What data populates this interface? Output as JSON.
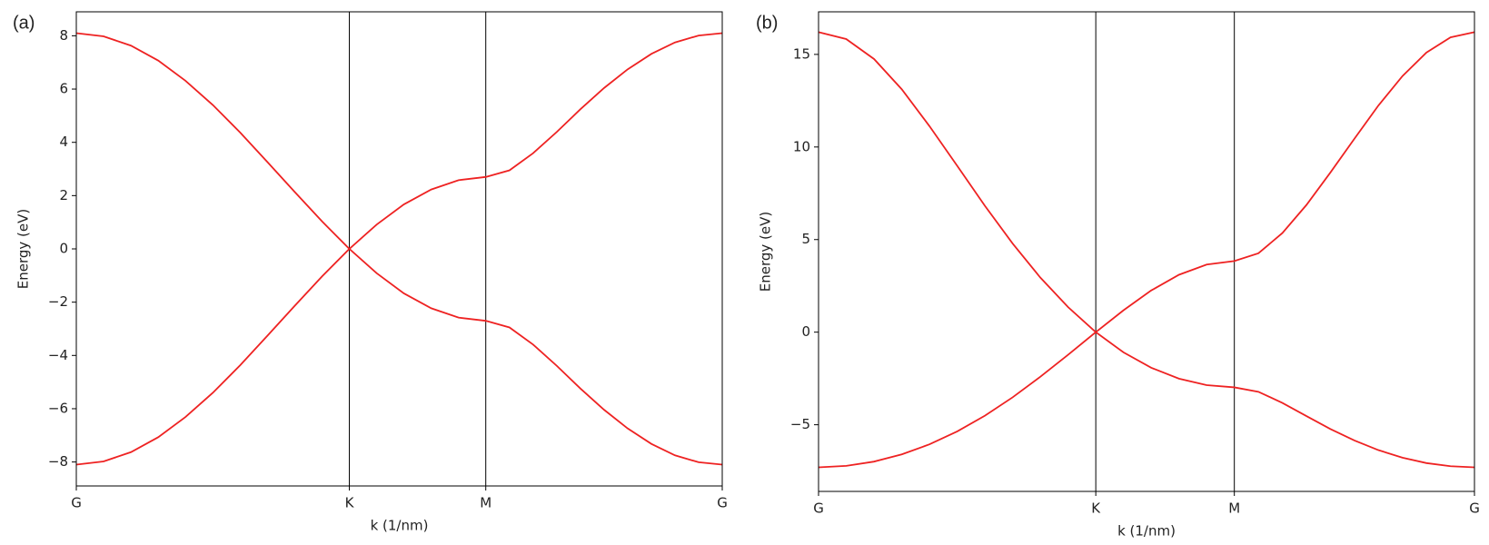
{
  "chart_data": [
    {
      "type": "line",
      "panel_label": "(a)",
      "xlabel": "k (1/nm)",
      "ylabel": "Energy (eV)",
      "grid": "x",
      "x": [
        0,
        1.7,
        3.41,
        5.11,
        6.81,
        8.52,
        10.22,
        11.92,
        13.62,
        15.33,
        17.03,
        18.73,
        20.43,
        22.14,
        23.84,
        25.54,
        27.02,
        28.49,
        29.97,
        31.44,
        32.92,
        34.39,
        35.87,
        37.34,
        38.82,
        40.29
      ],
      "series": [
        {
          "color": "#ee2222",
          "values": [
            8.1,
            7.98,
            7.63,
            7.07,
            6.31,
            5.4,
            4.37,
            3.26,
            2.14,
            1.03,
            0,
            0.91,
            1.67,
            2.23,
            2.58,
            2.7,
            2.95,
            3.59,
            4.39,
            5.24,
            6.04,
            6.74,
            7.32,
            7.75,
            8.01,
            8.1
          ]
        },
        {
          "color": "#ee2222",
          "values": [
            -8.1,
            -7.98,
            -7.63,
            -7.07,
            -6.31,
            -5.4,
            -4.37,
            -3.26,
            -2.14,
            -1.03,
            0,
            -0.91,
            -1.67,
            -2.23,
            -2.58,
            -2.7,
            -2.95,
            -3.59,
            -4.39,
            -5.24,
            -6.04,
            -6.74,
            -7.32,
            -7.75,
            -8.01,
            -8.1
          ]
        }
      ],
      "xlim": [
        0,
        40.29
      ],
      "xticks": [
        {
          "value": 0,
          "label": "G"
        },
        {
          "value": 17.03,
          "label": "K"
        },
        {
          "value": 25.54,
          "label": "M"
        },
        {
          "value": 40.29,
          "label": "G"
        }
      ],
      "ylim": [
        -8.9,
        8.9
      ],
      "yticks": [
        {
          "value": -8,
          "label": "−8"
        },
        {
          "value": -6,
          "label": "−6"
        },
        {
          "value": -4,
          "label": "−4"
        },
        {
          "value": -2,
          "label": "−2"
        },
        0,
        2,
        4,
        6,
        8
      ]
    },
    {
      "type": "line",
      "panel_label": "(b)",
      "xlabel": "k (1/nm)",
      "ylabel": "Energy (eV)",
      "grid": "x",
      "x": [
        0,
        1.7,
        3.41,
        5.11,
        6.81,
        8.52,
        10.22,
        11.92,
        13.62,
        15.33,
        17.03,
        18.73,
        20.43,
        22.14,
        23.84,
        25.54,
        27.02,
        28.49,
        29.97,
        31.44,
        32.92,
        34.39,
        35.87,
        37.34,
        38.82,
        40.29
      ],
      "series": [
        {
          "color": "#ee2222",
          "values": [
            16.2,
            15.83,
            14.75,
            13.12,
            11.13,
            8.98,
            6.82,
            4.79,
            2.95,
            1.35,
            0,
            1.18,
            2.25,
            3.1,
            3.65,
            3.84,
            4.26,
            5.35,
            6.87,
            8.62,
            10.45,
            12.24,
            13.83,
            15.1,
            15.92,
            16.2
          ]
        },
        {
          "color": "#ee2222",
          "values": [
            -7.3,
            -7.22,
            -6.99,
            -6.6,
            -6.06,
            -5.36,
            -4.51,
            -3.52,
            -2.41,
            -1.22,
            0,
            -1.09,
            -1.92,
            -2.51,
            -2.86,
            -2.98,
            -3.22,
            -3.82,
            -4.53,
            -5.23,
            -5.85,
            -6.37,
            -6.78,
            -7.07,
            -7.24,
            -7.3
          ]
        }
      ],
      "xlim": [
        0,
        40.29
      ],
      "xticks": [
        {
          "value": 0,
          "label": "G"
        },
        {
          "value": 17.03,
          "label": "K"
        },
        {
          "value": 25.54,
          "label": "M"
        },
        {
          "value": 40.29,
          "label": "G"
        }
      ],
      "ylim": [
        -8.6,
        17.3
      ],
      "yticks": [
        {
          "value": -5,
          "label": "−5"
        },
        0,
        5,
        10,
        15
      ]
    }
  ]
}
